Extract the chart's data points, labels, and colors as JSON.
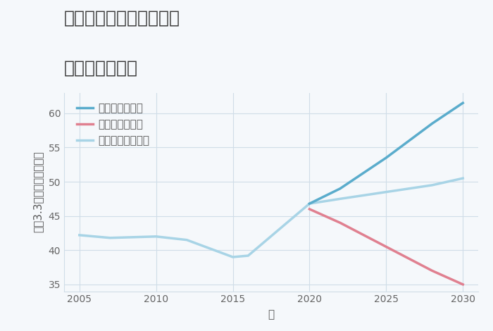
{
  "title_line1": "愛知県春日井市細木町の",
  "title_line2": "土地の価格推移",
  "xlabel": "年",
  "ylabel": "平（3.3㎡）単価（万円）",
  "background_color": "#f5f8fb",
  "plot_background": "#f5f8fb",
  "normal_label": "ノーマルシナリオ",
  "good_label": "グッドシナリオ",
  "bad_label": "バッドシナリオ",
  "normal_color": "#a8d4e6",
  "good_color": "#5aaccc",
  "bad_color": "#e08090",
  "grid_color": "#d0dde8",
  "normal_x": [
    2005,
    2007,
    2010,
    2012,
    2015,
    2016,
    2020,
    2022,
    2025,
    2028,
    2030
  ],
  "normal_y": [
    42.2,
    41.8,
    42.0,
    41.5,
    39.0,
    39.2,
    46.8,
    47.5,
    48.5,
    49.5,
    50.5
  ],
  "good_x": [
    2020,
    2022,
    2025,
    2028,
    2030
  ],
  "good_y": [
    46.8,
    49.0,
    53.5,
    58.5,
    61.5
  ],
  "bad_x": [
    2020,
    2022,
    2025,
    2028,
    2030
  ],
  "bad_y": [
    46.0,
    44.0,
    40.5,
    37.0,
    35.0
  ],
  "xlim": [
    2004,
    2031
  ],
  "ylim": [
    34,
    63
  ],
  "xticks": [
    2005,
    2010,
    2015,
    2020,
    2025,
    2030
  ],
  "yticks": [
    35,
    40,
    45,
    50,
    55,
    60
  ],
  "title_fontsize": 18,
  "axis_fontsize": 11,
  "tick_fontsize": 10,
  "legend_fontsize": 11,
  "line_width": 2.5
}
